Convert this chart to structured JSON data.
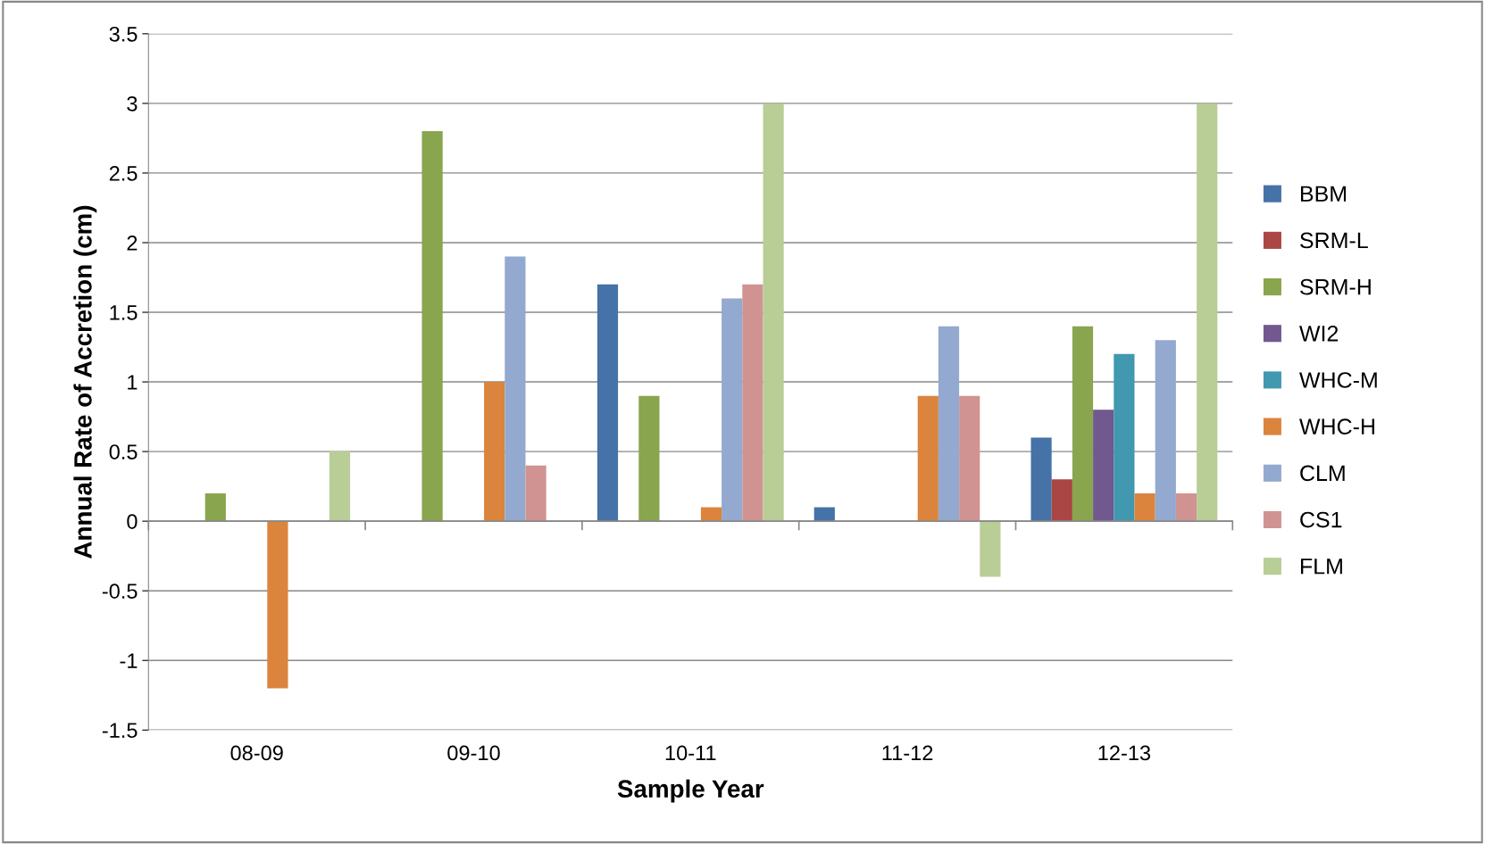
{
  "chart_data": {
    "type": "bar",
    "xlabel": "Sample Year",
    "ylabel": "Annual Rate of Accretion (cm)",
    "categories": [
      "08-09",
      "09-10",
      "10-11",
      "11-12",
      "12-13"
    ],
    "series": [
      {
        "name": "BBM",
        "color": "#4572a7",
        "values": [
          null,
          null,
          1.7,
          0.1,
          0.6
        ]
      },
      {
        "name": "SRM-L",
        "color": "#aa4643",
        "values": [
          null,
          null,
          null,
          null,
          0.3
        ]
      },
      {
        "name": "SRM-H",
        "color": "#89a54e",
        "values": [
          0.2,
          2.8,
          0.9,
          null,
          1.4
        ]
      },
      {
        "name": "WI2",
        "color": "#71588f",
        "values": [
          null,
          null,
          null,
          null,
          0.8
        ]
      },
      {
        "name": "WHC-M",
        "color": "#4198af",
        "values": [
          null,
          null,
          null,
          null,
          1.2
        ]
      },
      {
        "name": "WHC-H",
        "color": "#db843d",
        "values": [
          -1.2,
          1.0,
          0.1,
          0.9,
          0.2
        ]
      },
      {
        "name": "CLM",
        "color": "#93a9cf",
        "values": [
          null,
          1.9,
          1.6,
          1.4,
          1.3
        ]
      },
      {
        "name": "CS1",
        "color": "#d19392",
        "values": [
          null,
          0.4,
          1.7,
          0.9,
          0.2
        ]
      },
      {
        "name": "FLM",
        "color": "#b9cd96",
        "values": [
          0.5,
          null,
          3.0,
          -0.4,
          3.0
        ]
      }
    ],
    "ylim": [
      -1.5,
      3.5
    ],
    "yticks": [
      -1.5,
      -1,
      -0.5,
      0,
      0.5,
      1,
      1.5,
      2,
      2.5,
      3,
      3.5
    ],
    "grid": "y",
    "legend": "right"
  }
}
